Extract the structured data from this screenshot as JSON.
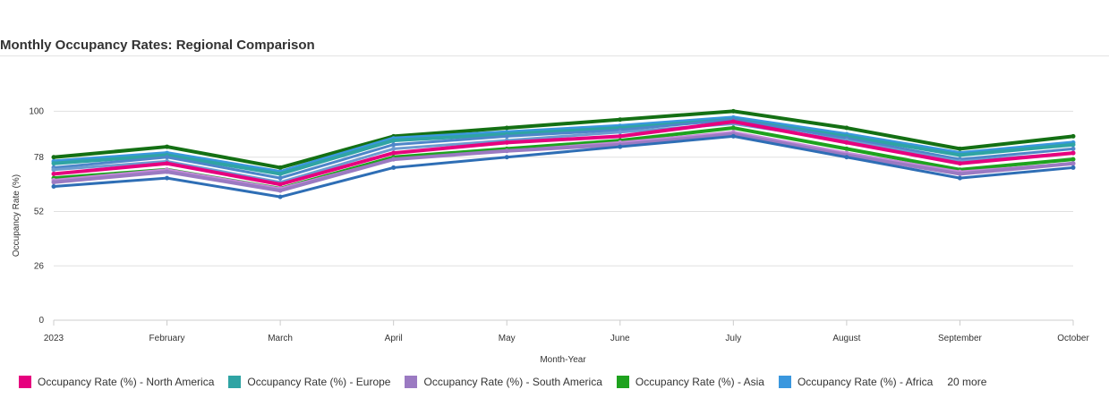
{
  "chart_data": {
    "type": "line",
    "title": "Monthly Occupancy Rates: Regional Comparison",
    "xlabel": "Month-Year",
    "ylabel": "Occupancy Rate (%)",
    "categories": [
      "2023",
      "February",
      "March",
      "April",
      "May",
      "June",
      "July",
      "August",
      "September",
      "October"
    ],
    "y_ticks": [
      "0",
      "26",
      "52",
      "78",
      "100"
    ],
    "ylim": [
      0,
      104
    ],
    "series": [
      {
        "name": "Occupancy Rate (%) - North America",
        "color": "#e6007e",
        "values": [
          70,
          75,
          65,
          80,
          85,
          88,
          95,
          85,
          75,
          80
        ]
      },
      {
        "name": "Occupancy Rate (%) - Europe",
        "color": "#2fa4a4",
        "values": [
          75,
          79,
          70,
          86,
          89,
          92,
          96,
          88,
          79,
          84
        ]
      },
      {
        "name": "Occupancy Rate (%) - South America",
        "color": "#9b7ac2",
        "values": [
          66,
          71,
          62,
          77,
          81,
          84,
          89,
          79,
          70,
          75
        ]
      },
      {
        "name": "Occupancy Rate (%) - Asia",
        "color": "#1ea21e",
        "values": [
          68,
          72,
          63,
          78,
          82,
          86,
          92,
          82,
          72,
          77
        ]
      },
      {
        "name": "Occupancy Rate (%) - Africa",
        "color": "#3a97de",
        "values": [
          76,
          80,
          71,
          87,
          90,
          93,
          97,
          89,
          80,
          85
        ]
      },
      {
        "color": "#147014",
        "values": [
          78,
          83,
          73,
          88,
          92,
          96,
          100,
          92,
          82,
          88
        ]
      },
      {
        "color": "#4e86c9",
        "values": [
          73,
          78,
          68,
          84,
          88,
          91,
          96,
          87,
          77,
          82
        ]
      },
      {
        "color": "#6d9bd0",
        "values": [
          72,
          76,
          66,
          82,
          86,
          90,
          94,
          86,
          76,
          80
        ]
      },
      {
        "color": "#c58ad8",
        "values": [
          67,
          72,
          63,
          77,
          81,
          85,
          90,
          80,
          71,
          75
        ]
      },
      {
        "color": "#2e6eb5",
        "values": [
          64,
          68,
          59,
          73,
          78,
          83,
          88,
          78,
          68,
          73
        ]
      }
    ],
    "legend_more": "20 more",
    "legend_position": "bottom-left",
    "grid": true
  }
}
